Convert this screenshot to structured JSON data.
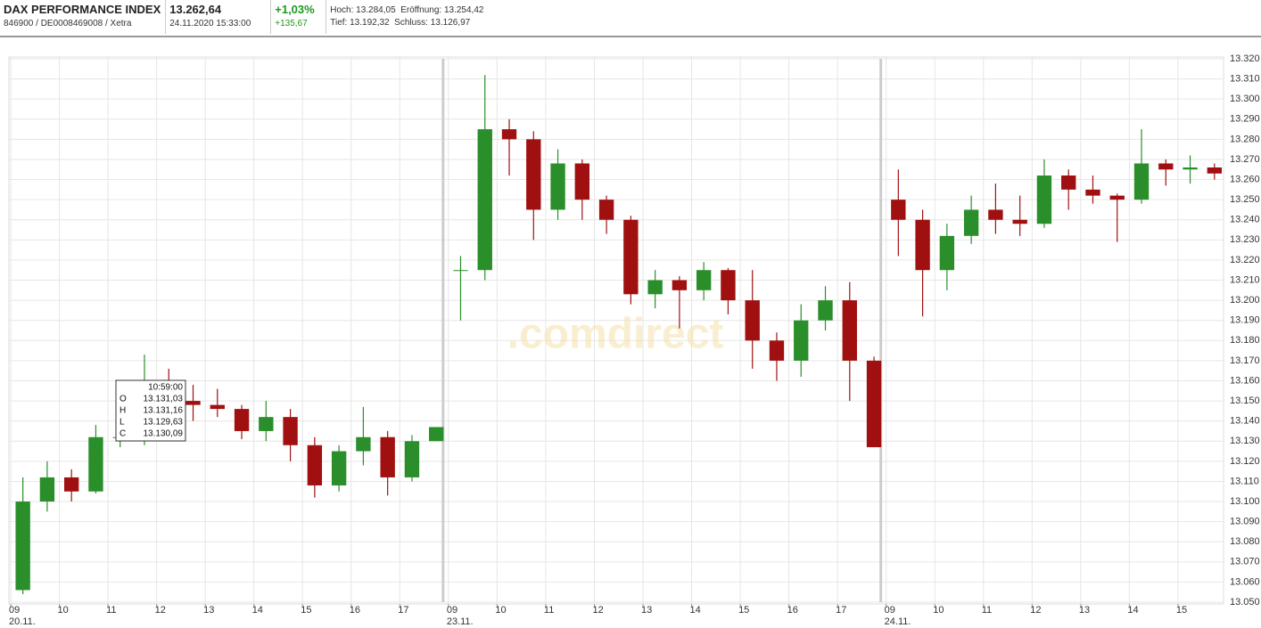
{
  "header": {
    "name": "DAX PERFORMANCE INDEX",
    "identifier": "846900 / DE0008469008 / Xetra",
    "price": "13.262,64",
    "timestamp": "24.11.2020 15:33:00",
    "change_percent": "+1,03%",
    "change_absolute": "+135,67",
    "stats": [
      {
        "label": "Hoch:",
        "value": "13.284,05"
      },
      {
        "label": "Eröffnung:",
        "value": "13.254,42"
      },
      {
        "label": "Tief:",
        "value": "13.192,32"
      },
      {
        "label": "Schluss:",
        "value": "13.126,97"
      }
    ]
  },
  "chart_data": {
    "type": "candlestick",
    "watermark": ".comdirect",
    "grid": true,
    "up_color": "#2a8f2a",
    "down_color": "#a01010",
    "xlim": [
      0,
      24.9
    ],
    "ylim": [
      13050,
      13320
    ],
    "xticks": [
      {
        "value": 0,
        "label": "09"
      },
      {
        "value": 1,
        "label": "10"
      },
      {
        "value": 2,
        "label": "11"
      },
      {
        "value": 3,
        "label": "12"
      },
      {
        "value": 4,
        "label": "13"
      },
      {
        "value": 5,
        "label": "14"
      },
      {
        "value": 6,
        "label": "15"
      },
      {
        "value": 7,
        "label": "16"
      },
      {
        "value": 8,
        "label": "17"
      },
      {
        "value": 9,
        "label": "09"
      },
      {
        "value": 10,
        "label": "10"
      },
      {
        "value": 11,
        "label": "11"
      },
      {
        "value": 12,
        "label": "12"
      },
      {
        "value": 13,
        "label": "13"
      },
      {
        "value": 14,
        "label": "14"
      },
      {
        "value": 15,
        "label": "15"
      },
      {
        "value": 16,
        "label": "16"
      },
      {
        "value": 17,
        "label": "17"
      },
      {
        "value": 18,
        "label": "09"
      },
      {
        "value": 19,
        "label": "10"
      },
      {
        "value": 20,
        "label": "11"
      },
      {
        "value": 21,
        "label": "12"
      },
      {
        "value": 22,
        "label": "13"
      },
      {
        "value": 23,
        "label": "14"
      },
      {
        "value": 24,
        "label": "15"
      }
    ],
    "day_labels": [
      {
        "value": 0,
        "label": "20.11."
      },
      {
        "value": 9,
        "label": "23.11."
      },
      {
        "value": 18,
        "label": "24.11."
      }
    ],
    "yticks": [
      {
        "value": 13050,
        "label": "13.050"
      },
      {
        "value": 13060,
        "label": "13.060"
      },
      {
        "value": 13070,
        "label": "13.070"
      },
      {
        "value": 13080,
        "label": "13.080"
      },
      {
        "value": 13090,
        "label": "13.090"
      },
      {
        "value": 13100,
        "label": "13.100"
      },
      {
        "value": 13110,
        "label": "13.110"
      },
      {
        "value": 13120,
        "label": "13.120"
      },
      {
        "value": 13130,
        "label": "13.130"
      },
      {
        "value": 13140,
        "label": "13.140"
      },
      {
        "value": 13150,
        "label": "13.150"
      },
      {
        "value": 13160,
        "label": "13.160"
      },
      {
        "value": 13170,
        "label": "13.170"
      },
      {
        "value": 13180,
        "label": "13.180"
      },
      {
        "value": 13190,
        "label": "13.190"
      },
      {
        "value": 13200,
        "label": "13.200"
      },
      {
        "value": 13210,
        "label": "13.210"
      },
      {
        "value": 13220,
        "label": "13.220"
      },
      {
        "value": 13230,
        "label": "13.230"
      },
      {
        "value": 13240,
        "label": "13.240"
      },
      {
        "value": 13250,
        "label": "13.250"
      },
      {
        "value": 13260,
        "label": "13.260"
      },
      {
        "value": 13270,
        "label": "13.270"
      },
      {
        "value": 13280,
        "label": "13.280"
      },
      {
        "value": 13290,
        "label": "13.290"
      },
      {
        "value": 13300,
        "label": "13.300"
      },
      {
        "value": 13310,
        "label": "13.310"
      },
      {
        "value": 13320,
        "label": "13.320"
      }
    ],
    "x": [
      0,
      0.5,
      1,
      1.5,
      2,
      2.5,
      3,
      3.5,
      4,
      4.5,
      5,
      5.5,
      6,
      6.5,
      7,
      7.5,
      8,
      8.5,
      9,
      9.5,
      10,
      10.5,
      11,
      11.5,
      12,
      12.5,
      13,
      13.5,
      14,
      14.5,
      15,
      15.5,
      16,
      16.5,
      17,
      17.5,
      18,
      18.5,
      19,
      19.5,
      20,
      20.5,
      21,
      21.5,
      22,
      22.5,
      23,
      23.5,
      24,
      24.5
    ],
    "open": [
      13056,
      13100,
      13112,
      13105,
      13132,
      13132,
      13158,
      13150,
      13148,
      13146,
      13135,
      13142,
      13128,
      13108,
      13125,
      13132,
      13112,
      13130,
      13215,
      13215,
      13285,
      13280,
      13245,
      13268,
      13250,
      13240,
      13203,
      13210,
      13205,
      13215,
      13200,
      13180,
      13170,
      13190,
      13200,
      13170,
      13250,
      13240,
      13215,
      13232,
      13245,
      13240,
      13238,
      13262,
      13255,
      13252,
      13250,
      13268,
      13265,
      13266
    ],
    "high": [
      13112,
      13120,
      13116,
      13138,
      13138,
      13173,
      13166,
      13158,
      13156,
      13148,
      13150,
      13146,
      13132,
      13128,
      13147,
      13135,
      13133,
      13137,
      13222,
      13312,
      13290,
      13284,
      13275,
      13270,
      13252,
      13242,
      13215,
      13212,
      13219,
      13216,
      13215,
      13184,
      13198,
      13207,
      13209,
      13172,
      13265,
      13245,
      13238,
      13252,
      13258,
      13252,
      13270,
      13265,
      13262,
      13253,
      13285,
      13270,
      13272,
      13268
    ],
    "low": [
      13054,
      13095,
      13100,
      13104,
      13127,
      13128,
      13140,
      13140,
      13142,
      13131,
      13130,
      13120,
      13102,
      13105,
      13118,
      13103,
      13110,
      13130,
      13190,
      13210,
      13262,
      13230,
      13240,
      13240,
      13233,
      13198,
      13196,
      13186,
      13200,
      13193,
      13166,
      13160,
      13162,
      13185,
      13150,
      13127,
      13222,
      13192,
      13205,
      13228,
      13233,
      13232,
      13236,
      13245,
      13248,
      13229,
      13248,
      13257,
      13258,
      13260
    ],
    "close": [
      13100,
      13112,
      13105,
      13132,
      13132,
      13158,
      13150,
      13148,
      13146,
      13135,
      13142,
      13128,
      13108,
      13125,
      13132,
      13112,
      13130,
      13137,
      13215,
      13285,
      13280,
      13245,
      13268,
      13250,
      13240,
      13203,
      13210,
      13205,
      13215,
      13200,
      13180,
      13170,
      13190,
      13200,
      13170,
      13127,
      13240,
      13215,
      13232,
      13245,
      13240,
      13238,
      13262,
      13255,
      13252,
      13250,
      13268,
      13265,
      13266,
      13263
    ],
    "tooltip": {
      "time": "10:59:00",
      "rows": [
        {
          "key": "O",
          "value": "13.131,03"
        },
        {
          "key": "H",
          "value": "13.131,16"
        },
        {
          "key": "L",
          "value": "13.129,63"
        },
        {
          "key": "C",
          "value": "13.130,09"
        }
      ]
    }
  }
}
